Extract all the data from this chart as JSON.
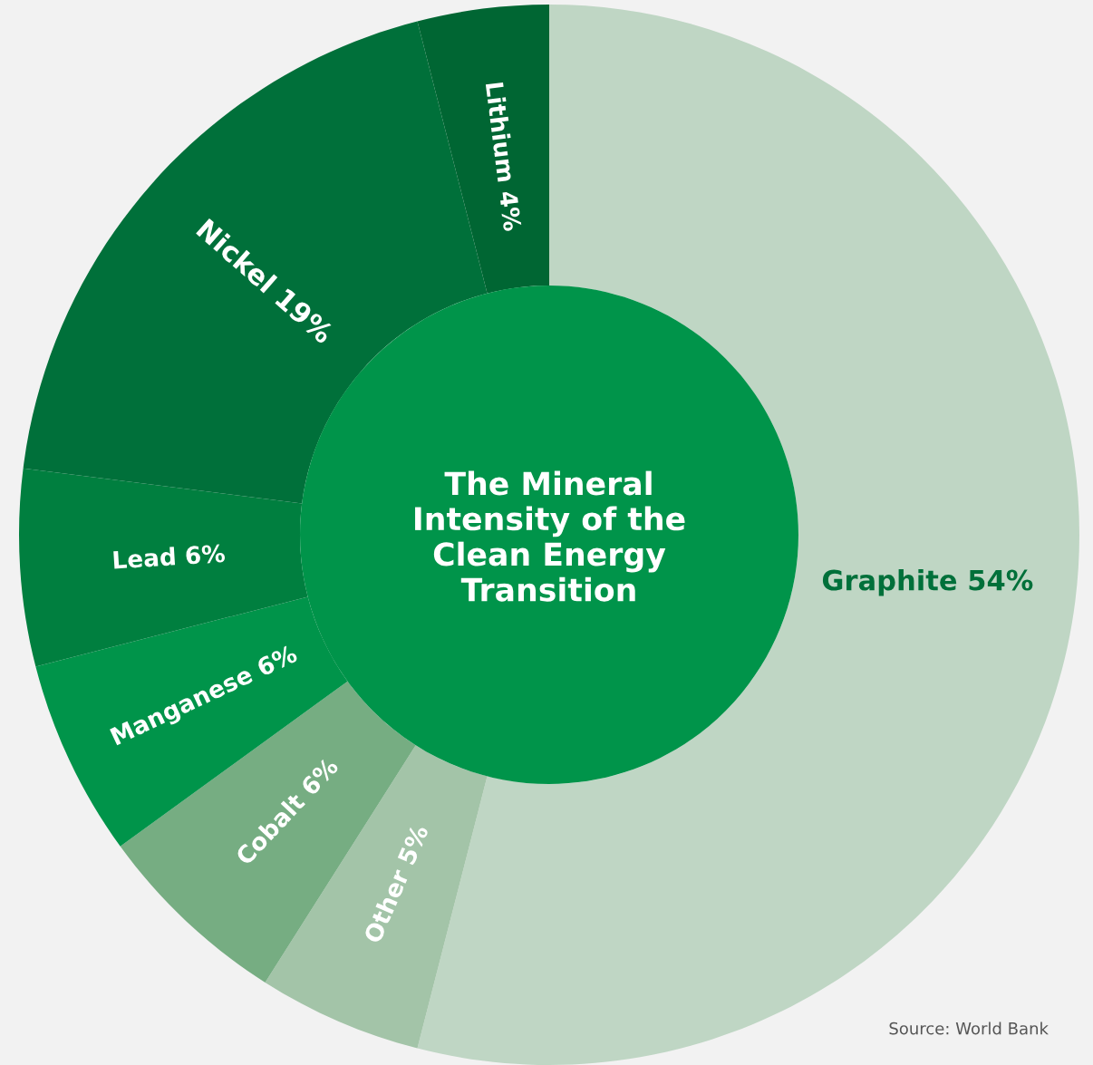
{
  "chart_data": {
    "type": "donut",
    "title": "The Mineral Intensity of the Clean Energy Transition",
    "categories": [
      "Graphite",
      "Other",
      "Cobalt",
      "Manganese",
      "Lead",
      "Nickel",
      "Lithium"
    ],
    "values": [
      54,
      5,
      6,
      6,
      6,
      19,
      4
    ],
    "value_labels": [
      "54%",
      "5%",
      "6%",
      "6%",
      "6%",
      "19%",
      "4%"
    ],
    "colors": [
      "#bfd6c4",
      "#a3c4a8",
      "#76ad82",
      "#00944a",
      "#007f3f",
      "#00703a",
      "#006633"
    ],
    "annotations": [
      "Source: World Bank"
    ]
  }
}
